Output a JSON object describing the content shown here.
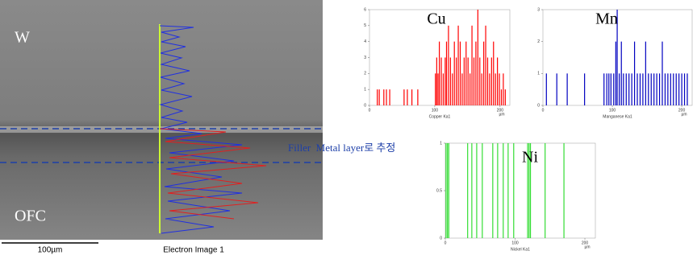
{
  "image": {
    "top_label": "W",
    "bottom_label": "OFC",
    "annotation": "Filler  Metal layer로 추정",
    "scale_bar": "100µm",
    "caption": "Electron Image 1"
  },
  "chart_data": [
    {
      "type": "spike",
      "title": "Cu",
      "x_label": "Copper Ka1",
      "x_unit": "µm",
      "color": "#ff0000",
      "x": [
        12,
        15,
        22,
        26,
        31,
        53,
        58,
        65,
        74,
        101,
        103,
        105,
        107,
        110,
        113,
        116,
        118,
        121,
        124,
        127,
        130,
        133,
        136,
        139,
        142,
        145,
        148,
        151,
        154,
        157,
        160,
        163,
        166,
        169,
        172,
        175,
        178,
        181,
        184,
        187,
        190,
        193,
        196,
        199,
        202,
        205,
        208
      ],
      "values": [
        1,
        1,
        1,
        1,
        1,
        1,
        1,
        1,
        1,
        2,
        3,
        2,
        4,
        3,
        2,
        3,
        4,
        5,
        3,
        2,
        4,
        3,
        5,
        4,
        2,
        3,
        4,
        3,
        2,
        5,
        3,
        4,
        6,
        3,
        2,
        4,
        5,
        3,
        2,
        3,
        4,
        2,
        3,
        2,
        1,
        2,
        1
      ],
      "xlim": [
        0,
        215
      ],
      "xticks": [
        0,
        100,
        200
      ],
      "ylim": [
        0,
        6
      ],
      "yticks": [
        0,
        1,
        2,
        3,
        4,
        5,
        6
      ]
    },
    {
      "type": "spike",
      "title": "Mn",
      "x_label": "Manganese Ka1",
      "x_unit": "µm",
      "color": "#0000c0",
      "x": [
        5,
        20,
        35,
        60,
        88,
        92,
        95,
        98,
        102,
        105,
        107,
        110,
        113,
        116,
        120,
        124,
        128,
        132,
        136,
        140,
        144,
        148,
        152,
        156,
        160,
        164,
        168,
        172,
        176,
        180,
        184,
        188,
        192,
        196,
        200,
        204,
        208
      ],
      "values": [
        1,
        1,
        1,
        1,
        1,
        1,
        1,
        1,
        1,
        2,
        3,
        1,
        2,
        1,
        1,
        1,
        1,
        2,
        1,
        1,
        1,
        2,
        1,
        1,
        1,
        1,
        1,
        2,
        1,
        1,
        1,
        1,
        1,
        1,
        1,
        1,
        1
      ],
      "xlim": [
        0,
        215
      ],
      "xticks": [
        0,
        100,
        200
      ],
      "ylim": [
        0,
        3
      ],
      "yticks": [
        0,
        1,
        2,
        3
      ]
    },
    {
      "type": "spike",
      "title": "Ni",
      "x_label": "Nickel Ka1",
      "x_unit": "µm",
      "color": "#33dd33",
      "x": [
        1,
        3,
        5,
        32,
        38,
        45,
        53,
        68,
        75,
        83,
        90,
        98,
        118,
        120,
        122,
        143,
        170
      ],
      "values": [
        1,
        1,
        1,
        1,
        1,
        1,
        1,
        1,
        1,
        1,
        1,
        1,
        1,
        1,
        1,
        1,
        1
      ],
      "xlim": [
        0,
        215
      ],
      "xticks": [
        0,
        100,
        200
      ],
      "ylim": [
        0,
        1
      ],
      "yticks": [
        0,
        0.5,
        1
      ]
    }
  ]
}
